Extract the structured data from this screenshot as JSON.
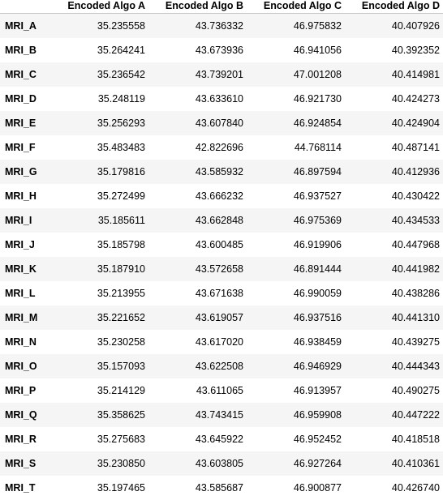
{
  "table": {
    "index_header": "",
    "columns": [
      "Encoded Algo A",
      "Encoded Algo B",
      "Encoded Algo C",
      "Encoded Algo D"
    ],
    "rows": [
      {
        "label": "MRI_A",
        "values": [
          "35.235558",
          "43.736332",
          "46.975832",
          "40.407926"
        ]
      },
      {
        "label": "MRI_B",
        "values": [
          "35.264241",
          "43.673936",
          "46.941056",
          "40.392352"
        ]
      },
      {
        "label": "MRI_C",
        "values": [
          "35.236542",
          "43.739201",
          "47.001208",
          "40.414981"
        ]
      },
      {
        "label": "MRI_D",
        "values": [
          "35.248119",
          "43.633610",
          "46.921730",
          "40.424273"
        ]
      },
      {
        "label": "MRI_E",
        "values": [
          "35.256293",
          "43.607840",
          "46.924854",
          "40.424904"
        ]
      },
      {
        "label": "MRI_F",
        "values": [
          "35.483483",
          "42.822696",
          "44.768114",
          "40.487141"
        ]
      },
      {
        "label": "MRI_G",
        "values": [
          "35.179816",
          "43.585932",
          "46.897594",
          "40.412936"
        ]
      },
      {
        "label": "MRI_H",
        "values": [
          "35.272499",
          "43.666232",
          "46.937527",
          "40.430422"
        ]
      },
      {
        "label": "MRI_I",
        "values": [
          "35.185611",
          "43.662848",
          "46.975369",
          "40.434533"
        ]
      },
      {
        "label": "MRI_J",
        "values": [
          "35.185798",
          "43.600485",
          "46.919906",
          "40.447968"
        ]
      },
      {
        "label": "MRI_K",
        "values": [
          "35.187910",
          "43.572658",
          "46.891444",
          "40.441982"
        ]
      },
      {
        "label": "MRI_L",
        "values": [
          "35.213955",
          "43.671638",
          "46.990059",
          "40.438286"
        ]
      },
      {
        "label": "MRI_M",
        "values": [
          "35.221652",
          "43.619057",
          "46.937516",
          "40.441310"
        ]
      },
      {
        "label": "MRI_N",
        "values": [
          "35.230258",
          "43.617020",
          "46.938459",
          "40.439275"
        ]
      },
      {
        "label": "MRI_O",
        "values": [
          "35.157093",
          "43.622508",
          "46.946929",
          "40.444343"
        ]
      },
      {
        "label": "MRI_P",
        "values": [
          "35.214129",
          "43.611065",
          "46.913957",
          "40.490275"
        ]
      },
      {
        "label": "MRI_Q",
        "values": [
          "35.358625",
          "43.743415",
          "46.959908",
          "40.447222"
        ]
      },
      {
        "label": "MRI_R",
        "values": [
          "35.275683",
          "43.645922",
          "46.952452",
          "40.418518"
        ]
      },
      {
        "label": "MRI_S",
        "values": [
          "35.230850",
          "43.603805",
          "46.927264",
          "40.410361"
        ]
      },
      {
        "label": "MRI_T",
        "values": [
          "35.197465",
          "43.585687",
          "46.900877",
          "40.426740"
        ]
      }
    ]
  }
}
